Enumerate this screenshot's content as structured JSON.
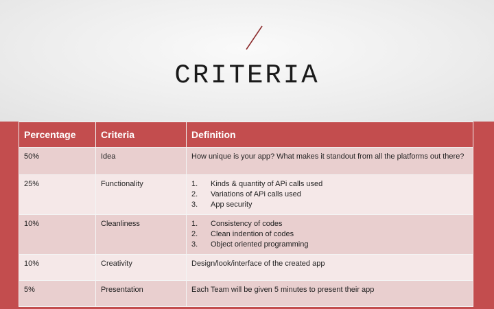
{
  "slide": {
    "title": "CRITERIA",
    "accent_color": "#c34d4e"
  },
  "table": {
    "headers": [
      "Percentage",
      "Criteria",
      "Definition"
    ],
    "rows": [
      {
        "percentage": "50%",
        "criteria": "Idea",
        "definition": "How unique is your app? What makes it standout from all the platforms out there?"
      },
      {
        "percentage": "25%",
        "criteria": "Functionality",
        "items": [
          {
            "num": "1.",
            "text": "Kinds & quantity of APi calls used"
          },
          {
            "num": "2.",
            "text": "Variations of APi calls used"
          },
          {
            "num": "3.",
            "text": "App security"
          }
        ]
      },
      {
        "percentage": "10%",
        "criteria": "Cleanliness",
        "items": [
          {
            "num": "1.",
            "text": "Consistency of codes"
          },
          {
            "num": "2.",
            "text": "Clean indention of codes"
          },
          {
            "num": "3.",
            "text": "Object oriented programming"
          }
        ]
      },
      {
        "percentage": "10%",
        "criteria": "Creativity",
        "definition": "Design/look/interface of the created app"
      },
      {
        "percentage": "5%",
        "criteria": "Presentation",
        "definition": "Each Team will be given 5 minutes to present their app"
      }
    ]
  }
}
